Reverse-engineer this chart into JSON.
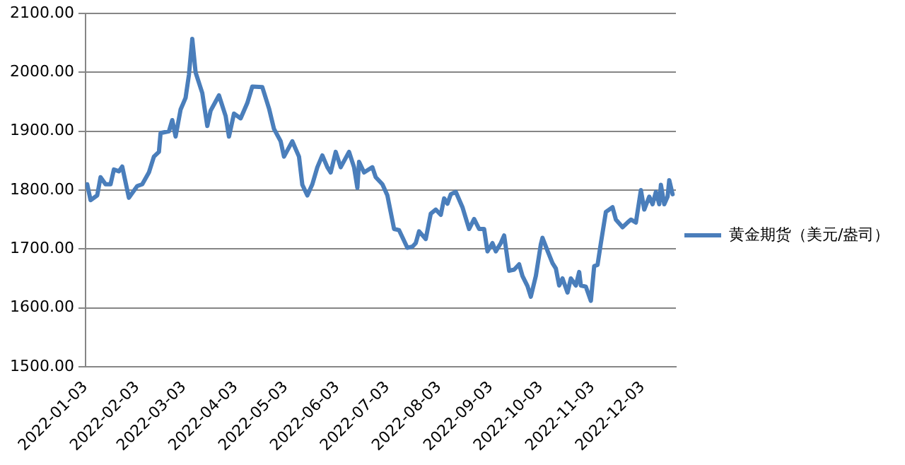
{
  "chart_data": {
    "type": "line",
    "x": [
      "2022-01-04",
      "2022-01-06",
      "2022-01-10",
      "2022-01-12",
      "2022-01-15",
      "2022-01-18",
      "2022-01-20",
      "2022-01-23",
      "2022-01-25",
      "2022-01-29",
      "2022-02-03",
      "2022-02-06",
      "2022-02-10",
      "2022-02-13",
      "2022-02-16",
      "2022-02-17",
      "2022-02-22",
      "2022-02-24",
      "2022-02-26",
      "2022-03-01",
      "2022-03-04",
      "2022-03-06",
      "2022-03-08",
      "2022-03-10",
      "2022-03-14",
      "2022-03-17",
      "2022-03-19",
      "2022-03-24",
      "2022-03-28",
      "2022-03-30",
      "2022-04-02",
      "2022-04-06",
      "2022-04-10",
      "2022-04-13",
      "2022-04-19",
      "2022-04-23",
      "2022-04-26",
      "2022-04-30",
      "2022-05-02",
      "2022-05-07",
      "2022-05-11",
      "2022-05-13",
      "2022-05-16",
      "2022-05-19",
      "2022-05-22",
      "2022-05-25",
      "2022-05-28",
      "2022-05-30",
      "2022-06-02",
      "2022-06-05",
      "2022-06-10",
      "2022-06-13",
      "2022-06-15",
      "2022-06-16",
      "2022-06-19",
      "2022-06-24",
      "2022-06-26",
      "2022-06-30",
      "2022-07-03",
      "2022-07-07",
      "2022-07-10",
      "2022-07-15",
      "2022-07-18",
      "2022-07-20",
      "2022-07-22",
      "2022-07-26",
      "2022-07-29",
      "2022-08-01",
      "2022-08-04",
      "2022-08-06",
      "2022-08-08",
      "2022-08-10",
      "2022-08-13",
      "2022-08-17",
      "2022-08-21",
      "2022-08-24",
      "2022-08-27",
      "2022-08-30",
      "2022-09-01",
      "2022-09-04",
      "2022-09-06",
      "2022-09-09",
      "2022-09-11",
      "2022-09-14",
      "2022-09-17",
      "2022-09-20",
      "2022-09-22",
      "2022-09-25",
      "2022-09-27",
      "2022-09-30",
      "2022-10-03",
      "2022-10-04",
      "2022-10-07",
      "2022-10-10",
      "2022-10-12",
      "2022-10-14",
      "2022-10-16",
      "2022-10-19",
      "2022-10-21",
      "2022-10-24",
      "2022-10-26",
      "2022-10-27",
      "2022-10-30",
      "2022-11-02",
      "2022-11-04",
      "2022-11-06",
      "2022-11-08",
      "2022-11-11",
      "2022-11-15",
      "2022-11-17",
      "2022-11-21",
      "2022-11-24",
      "2022-11-26",
      "2022-11-29",
      "2022-12-02",
      "2022-12-04",
      "2022-12-07",
      "2022-12-09",
      "2022-12-11",
      "2022-12-13",
      "2022-12-14",
      "2022-12-16",
      "2022-12-18",
      "2022-12-19",
      "2022-12-21"
    ],
    "series": [
      {
        "name": "黄金期货（美元/盎司）",
        "color": "#4a7ebb",
        "values": [
          1810,
          1783,
          1791,
          1822,
          1810,
          1810,
          1835,
          1832,
          1840,
          1787,
          1807,
          1810,
          1830,
          1857,
          1865,
          1897,
          1900,
          1919,
          1891,
          1937,
          1957,
          1996,
          2057,
          2000,
          1965,
          1909,
          1935,
          1961,
          1926,
          1891,
          1930,
          1922,
          1948,
          1976,
          1975,
          1939,
          1904,
          1883,
          1857,
          1883,
          1857,
          1809,
          1791,
          1810,
          1839,
          1859,
          1839,
          1830,
          1865,
          1839,
          1865,
          1839,
          1804,
          1848,
          1830,
          1839,
          1822,
          1810,
          1791,
          1734,
          1732,
          1702,
          1704,
          1710,
          1730,
          1717,
          1760,
          1767,
          1758,
          1786,
          1777,
          1793,
          1797,
          1771,
          1734,
          1751,
          1734,
          1734,
          1696,
          1710,
          1696,
          1710,
          1723,
          1663,
          1665,
          1674,
          1654,
          1637,
          1619,
          1654,
          1708,
          1719,
          1697,
          1676,
          1667,
          1638,
          1650,
          1626,
          1650,
          1638,
          1661,
          1638,
          1636,
          1612,
          1671,
          1673,
          1710,
          1763,
          1771,
          1750,
          1737,
          1745,
          1750,
          1745,
          1800,
          1767,
          1789,
          1776,
          1797,
          1776,
          1809,
          1776,
          1789,
          1817,
          1793
        ]
      }
    ],
    "xlim": [
      "2022-01-03",
      "2022-12-23"
    ],
    "xticks": [
      "2022-01-03",
      "2022-02-03",
      "2022-03-03",
      "2022-04-03",
      "2022-05-03",
      "2022-06-03",
      "2022-07-03",
      "2022-08-03",
      "2022-09-03",
      "2022-10-03",
      "2022-11-03",
      "2022-12-03"
    ],
    "ylim": [
      1500,
      2100
    ],
    "yticks": [
      {
        "value": 1500,
        "label": "1500.00"
      },
      {
        "value": 1600,
        "label": "1600.00"
      },
      {
        "value": 1700,
        "label": "1700.00"
      },
      {
        "value": 1800,
        "label": "1800.00"
      },
      {
        "value": 1900,
        "label": "1900.00"
      },
      {
        "value": 2000,
        "label": "2000.00"
      },
      {
        "value": 2100,
        "label": "2100.00"
      }
    ],
    "grid": "y",
    "legend": "right",
    "marker": "none",
    "line_style": "solid"
  }
}
